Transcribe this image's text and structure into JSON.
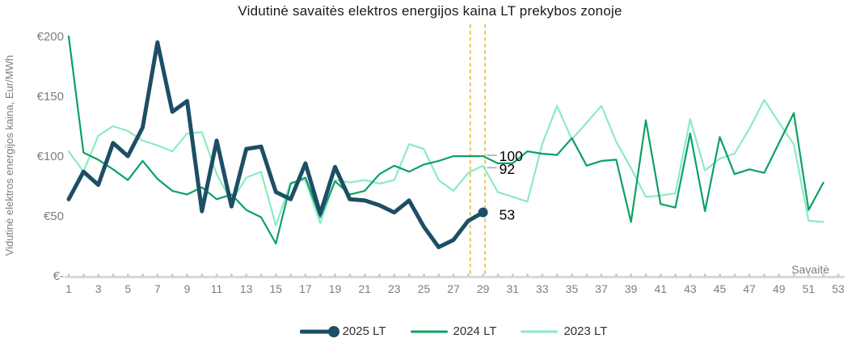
{
  "title": "Vidutinė savaitės elektros energijos kaina LT prekybos zonoje",
  "chart_data": {
    "type": "line",
    "title": "Vidutinė savaitės elektros energijos kaina LT prekybos zonoje",
    "xlabel": "Savaitė",
    "ylabel": "Vidutinė elektros energijos kaina, Eur/MWh",
    "x_range": [
      1,
      53
    ],
    "y_range": [
      0,
      205
    ],
    "grid": false,
    "legend_position": "bottom",
    "x_ticks": [
      1,
      3,
      5,
      7,
      9,
      11,
      13,
      15,
      17,
      19,
      21,
      23,
      25,
      27,
      29,
      31,
      33,
      35,
      37,
      39,
      41,
      43,
      45,
      47,
      49,
      51,
      53
    ],
    "y_ticks": [
      {
        "label": "€200",
        "value": 200
      },
      {
        "label": "€150",
        "value": 150
      },
      {
        "label": "€100",
        "value": 100
      },
      {
        "label": "€50",
        "value": 50
      },
      {
        "label": "€-",
        "value": 0
      }
    ],
    "series": [
      {
        "name": "2023 LT",
        "color": "#8BEAC7",
        "width": 2.2,
        "start_week": 1,
        "marker_end": false,
        "values": [
          104,
          87,
          117,
          125,
          121,
          113,
          109,
          104,
          119,
          120,
          85,
          62,
          82,
          87,
          42,
          78,
          80,
          44,
          80,
          78,
          80,
          77,
          80,
          110,
          106,
          80,
          71,
          86,
          92,
          70,
          66,
          62,
          110,
          142,
          114,
          128,
          142,
          112,
          90,
          66,
          67,
          69,
          131,
          88,
          98,
          102,
          123,
          147,
          128,
          110,
          46,
          45
        ]
      },
      {
        "name": "2024 LT",
        "color": "#0DA162",
        "width": 2.2,
        "start_week": 1,
        "marker_end": false,
        "values": [
          200,
          103,
          97,
          89,
          80,
          96,
          81,
          71,
          68,
          74,
          64,
          68,
          55,
          49,
          27,
          77,
          82,
          49,
          79,
          68,
          71,
          85,
          92,
          87,
          93,
          96,
          100,
          100,
          100,
          94,
          94,
          104,
          102,
          101,
          115,
          92,
          96,
          97,
          45,
          130,
          60,
          57,
          119,
          54,
          116,
          85,
          89,
          86,
          111,
          136,
          55,
          78
        ]
      },
      {
        "name": "2025 LT",
        "color": "#1D4E66",
        "width": 5,
        "start_week": 1,
        "marker_end": true,
        "values": [
          64,
          87,
          76,
          111,
          100,
          124,
          195,
          137,
          146,
          54,
          113,
          58,
          106,
          108,
          70,
          64,
          94,
          52,
          91,
          64,
          63,
          59,
          53,
          63,
          41,
          24,
          30,
          46,
          53
        ]
      }
    ],
    "guides": {
      "weeks": [
        28,
        29
      ],
      "color": "#E9C04B"
    },
    "annotations": [
      {
        "text": "100",
        "week": 29,
        "value": 100,
        "dy": 0,
        "leader": true,
        "leader_dy": -1
      },
      {
        "text": "92",
        "week": 29,
        "value": 92,
        "dy": 4,
        "leader": true,
        "leader_dy": 2.5
      },
      {
        "text": "53",
        "week": 29,
        "value": 53,
        "dy": 3,
        "leader": false,
        "leader_dy": 0
      }
    ]
  },
  "legend": {
    "items": [
      {
        "label": "2025 LT"
      },
      {
        "label": "2024 LT"
      },
      {
        "label": "2023 LT"
      }
    ]
  }
}
